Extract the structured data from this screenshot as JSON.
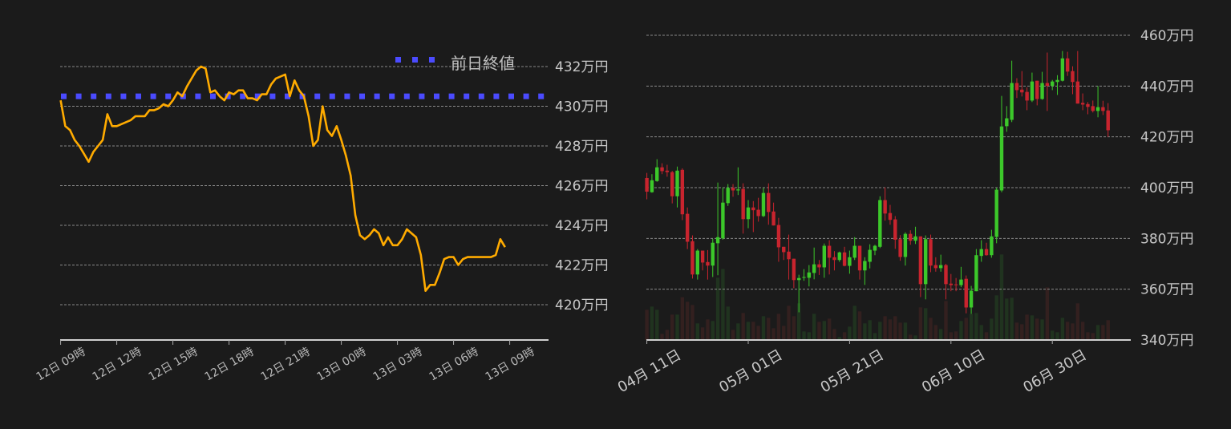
{
  "chart_data": [
    {
      "type": "line",
      "title": "",
      "xlabel": "",
      "ylabel": "",
      "ylim": [
        418.3,
        433.3
      ],
      "y_ticks": [
        "420万円",
        "422万円",
        "424万円",
        "426万円",
        "428万円",
        "430万円",
        "432万円"
      ],
      "y_tick_values": [
        420,
        422,
        424,
        426,
        428,
        430,
        432
      ],
      "x_ticks": [
        "12日 09時",
        "12日 12時",
        "12日 15時",
        "12日 18時",
        "12日 21時",
        "13日 00時",
        "13日 03時",
        "13日 06時",
        "13日 09時"
      ],
      "grid": true,
      "legend_position": "top-right",
      "reference_line": {
        "name": "前日終値",
        "value": 430.5,
        "color": "#4b4bff",
        "style": "dotted"
      },
      "series": [
        {
          "color": "#ffab00",
          "x": [
            "12日 09:00",
            "12日 09:15",
            "12日 09:30",
            "12日 09:45",
            "12日 10:00",
            "12日 10:15",
            "12日 10:30",
            "12日 10:45",
            "12日 11:00",
            "12日 11:15",
            "12日 11:30",
            "12日 11:45",
            "12日 12:00",
            "12日 12:15",
            "12日 12:30",
            "12日 12:45",
            "12日 13:00",
            "12日 13:15",
            "12日 13:30",
            "12日 13:45",
            "12日 14:00",
            "12日 14:15",
            "12日 14:30",
            "12日 14:45",
            "12日 15:00",
            "12日 15:15",
            "12日 15:30",
            "12日 15:45",
            "12日 16:00",
            "12日 16:15",
            "12日 16:30",
            "12日 16:45",
            "12日 17:00",
            "12日 17:15",
            "12日 17:30",
            "12日 17:45",
            "12日 18:00",
            "12日 18:15",
            "12日 18:30",
            "12日 18:45",
            "12日 19:00",
            "12日 19:15",
            "12日 19:30",
            "12日 19:45",
            "12日 20:00",
            "12日 20:15",
            "12日 20:30",
            "12日 20:45",
            "12日 21:00",
            "12日 21:15",
            "12日 21:30",
            "12日 21:45",
            "12日 22:00",
            "12日 22:15",
            "12日 22:30",
            "12日 22:45",
            "12日 23:00",
            "12日 23:15",
            "12日 23:30",
            "12日 23:45",
            "13日 00:00",
            "13日 00:15",
            "13日 00:30",
            "13日 00:45",
            "13日 01:00",
            "13日 01:15",
            "13日 01:30",
            "13日 01:45",
            "13日 02:00",
            "13日 02:15",
            "13日 02:30",
            "13日 02:45",
            "13日 03:00",
            "13日 03:15",
            "13日 03:30",
            "13日 03:45",
            "13日 04:00",
            "13日 04:15",
            "13日 04:30",
            "13日 04:45",
            "13日 05:00",
            "13日 05:15",
            "13日 05:30",
            "13日 05:45",
            "13日 06:00",
            "13日 06:15",
            "13日 06:30",
            "13日 06:45",
            "13日 07:00",
            "13日 07:15",
            "13日 07:30",
            "13日 07:45",
            "13日 08:00",
            "13日 08:15",
            "13日 08:30",
            "13日 08:45"
          ],
          "y": [
            430.3,
            429.0,
            428.8,
            428.3,
            428.0,
            427.6,
            427.2,
            427.7,
            428.0,
            428.3,
            429.6,
            429.0,
            429.0,
            429.1,
            429.2,
            429.3,
            429.5,
            429.5,
            429.5,
            429.8,
            429.8,
            429.9,
            430.1,
            430.0,
            430.3,
            430.7,
            430.5,
            431.0,
            431.4,
            431.8,
            432.0,
            431.9,
            430.7,
            430.8,
            430.5,
            430.3,
            430.7,
            430.6,
            430.8,
            430.8,
            430.4,
            430.4,
            430.3,
            430.6,
            430.6,
            431.1,
            431.4,
            431.5,
            431.6,
            430.5,
            431.3,
            430.8,
            430.5,
            429.5,
            428.0,
            428.3,
            430.0,
            428.8,
            428.5,
            429.0,
            428.3,
            427.5,
            426.5,
            424.5,
            423.5,
            423.3,
            423.5,
            423.8,
            423.6,
            423.0,
            423.4,
            423.0,
            423.0,
            423.3,
            423.8,
            423.6,
            423.4,
            422.5,
            420.7,
            421.0,
            421.0,
            421.6,
            422.3,
            422.4,
            422.4,
            422.0,
            422.3,
            422.4,
            422.4,
            422.4,
            422.4,
            422.4,
            422.4,
            422.5,
            423.3,
            422.9
          ]
        }
      ]
    },
    {
      "type": "candlestick",
      "title": "",
      "xlabel": "",
      "ylabel": "",
      "ylim": [
        340,
        460
      ],
      "y_ticks": [
        "340万円",
        "360万円",
        "380万円",
        "400万円",
        "420万円",
        "440万円",
        "460万円"
      ],
      "y_tick_values": [
        340,
        360,
        380,
        400,
        420,
        440,
        460
      ],
      "x_ticks": [
        "04月 11日",
        "05月 01日",
        "05月 21日",
        "06月 10日",
        "06月 30日"
      ],
      "x_tick_dates": [
        "04-11",
        "05-01",
        "05-21",
        "06-10",
        "06-30"
      ],
      "grid": true,
      "up_color": "#3cc82a",
      "down_color": "#c8242e",
      "volume_up_color": "#20331f",
      "volume_down_color": "#33201f",
      "ohlcv_fields": [
        "date",
        "open",
        "high",
        "low",
        "close",
        "volume"
      ],
      "candles": [
        [
          "04-11",
          403.8,
          405.8,
          395.4,
          398.4,
          113
        ],
        [
          "04-12",
          398.2,
          405.3,
          398.0,
          402.9,
          125
        ],
        [
          "04-13",
          402.6,
          411.2,
          402.3,
          408.0,
          113
        ],
        [
          "04-14",
          408.0,
          409.6,
          405.3,
          406.5,
          23
        ],
        [
          "04-15",
          406.7,
          409.0,
          404.3,
          406.1,
          38
        ],
        [
          "04-16",
          406.1,
          406.6,
          393.8,
          396.6,
          95
        ],
        [
          "04-17",
          396.6,
          408.3,
          392.2,
          406.7,
          95
        ],
        [
          "04-18",
          407.0,
          407.6,
          387.2,
          389.5,
          160
        ],
        [
          "04-19",
          389.7,
          392.2,
          375.8,
          378.7,
          143
        ],
        [
          "04-20",
          378.9,
          381.2,
          364.2,
          365.8,
          131
        ],
        [
          "04-21",
          365.8,
          375.8,
          363.8,
          375.2,
          62
        ],
        [
          "04-22",
          375.2,
          375.2,
          367.4,
          370.5,
          47
        ],
        [
          "04-23",
          370.7,
          375.4,
          363.8,
          369.3,
          77
        ],
        [
          "04-24",
          369.3,
          379.8,
          364.8,
          378.3,
          71
        ],
        [
          "04-25",
          378.1,
          402.0,
          365.5,
          380.5,
          233
        ],
        [
          "04-26",
          380.0,
          400.1,
          379.5,
          394.1,
          266
        ],
        [
          "04-27",
          393.9,
          401.4,
          392.8,
          399.9,
          125
        ],
        [
          "04-28",
          399.9,
          401.4,
          396.4,
          398.9,
          38
        ],
        [
          "04-29",
          398.9,
          408.0,
          397.1,
          399.3,
          62
        ],
        [
          "04-30",
          399.5,
          401.7,
          381.9,
          387.6,
          101
        ],
        [
          "05-01",
          387.6,
          395.1,
          384.0,
          392.2,
          68
        ],
        [
          "05-02",
          392.2,
          394.7,
          382.5,
          391.1,
          68
        ],
        [
          "05-03",
          391.3,
          396.0,
          386.6,
          388.8,
          53
        ],
        [
          "05-04",
          388.8,
          399.9,
          388.4,
          397.9,
          89
        ],
        [
          "05-05",
          397.9,
          401.7,
          385.4,
          390.4,
          83
        ],
        [
          "05-06",
          390.6,
          394.1,
          385.1,
          385.1,
          44
        ],
        [
          "05-07",
          385.3,
          388.1,
          370.8,
          376.5,
          98
        ],
        [
          "05-08",
          376.7,
          376.7,
          371.5,
          374.6,
          53
        ],
        [
          "05-09",
          374.8,
          381.5,
          363.8,
          371.8,
          128
        ],
        [
          "05-10",
          372.0,
          372.0,
          360.4,
          363.6,
          89
        ],
        [
          "05-11",
          363.6,
          365.7,
          350.9,
          364.4,
          137
        ],
        [
          "05-12",
          364.5,
          367.9,
          363.3,
          364.8,
          32
        ],
        [
          "05-13",
          364.5,
          369.5,
          361.1,
          366.6,
          29
        ],
        [
          "05-14",
          366.4,
          376.4,
          363.9,
          369.8,
          98
        ],
        [
          "05-15",
          369.8,
          371.5,
          365.6,
          368.6,
          68
        ],
        [
          "05-16",
          368.6,
          378.0,
          364.5,
          377.1,
          71
        ],
        [
          "05-17",
          377.1,
          379.3,
          365.8,
          372.4,
          80
        ],
        [
          "05-18",
          372.6,
          375.0,
          367.4,
          371.5,
          41
        ],
        [
          "05-19",
          371.5,
          374.8,
          370.8,
          374.5,
          11
        ],
        [
          "05-20",
          374.5,
          376.7,
          369.0,
          369.2,
          29
        ],
        [
          "05-21",
          369.2,
          375.2,
          366.1,
          372.6,
          50
        ],
        [
          "05-22",
          372.4,
          380.5,
          371.5,
          377.1,
          128
        ],
        [
          "05-23",
          377.1,
          377.1,
          363.8,
          367.4,
          107
        ],
        [
          "05-24",
          367.4,
          372.6,
          361.7,
          371.1,
          62
        ],
        [
          "05-25",
          370.8,
          377.7,
          368.2,
          375.5,
          74
        ],
        [
          "05-26",
          375.2,
          377.5,
          373.4,
          377.1,
          26
        ],
        [
          "05-27",
          376.7,
          396.6,
          376.2,
          395.1,
          68
        ],
        [
          "05-28",
          395.1,
          400.1,
          387.0,
          389.8,
          89
        ],
        [
          "05-29",
          390.0,
          393.2,
          385.4,
          387.3,
          77
        ],
        [
          "05-30",
          387.5,
          388.8,
          375.9,
          379.5,
          89
        ],
        [
          "05-31",
          379.7,
          381.3,
          371.2,
          372.7,
          65
        ],
        [
          "06-01",
          372.7,
          382.4,
          369.3,
          381.8,
          65
        ],
        [
          "06-02",
          381.8,
          383.2,
          377.5,
          379.1,
          20
        ],
        [
          "06-03",
          379.1,
          384.6,
          377.8,
          380.8,
          17
        ],
        [
          "06-04",
          380.8,
          380.8,
          356.9,
          362.0,
          122
        ],
        [
          "06-05",
          362.0,
          381.2,
          356.0,
          379.7,
          119
        ],
        [
          "06-06",
          379.7,
          381.5,
          366.7,
          369.3,
          83
        ],
        [
          "06-07",
          369.5,
          372.6,
          366.9,
          368.3,
          56
        ],
        [
          "06-08",
          368.3,
          373.6,
          366.9,
          369.5,
          41
        ],
        [
          "06-09",
          369.5,
          370.0,
          356.0,
          362.0,
          146
        ],
        [
          "06-10",
          362.2,
          366.0,
          359.2,
          361.6,
          29
        ],
        [
          "06-11",
          361.9,
          364.4,
          359.2,
          361.7,
          32
        ],
        [
          "06-12",
          361.6,
          368.8,
          360.8,
          363.8,
          71
        ],
        [
          "06-13",
          364.1,
          365.4,
          350.5,
          352.8,
          83
        ],
        [
          "06-14",
          352.8,
          361.3,
          350.3,
          359.4,
          98
        ],
        [
          "06-15",
          359.2,
          375.8,
          359.2,
          373.4,
          101
        ],
        [
          "06-16",
          373.1,
          379.3,
          370.8,
          375.8,
          56
        ],
        [
          "06-17",
          375.8,
          378.3,
          373.2,
          373.4,
          29
        ],
        [
          "06-18",
          373.4,
          383.4,
          372.4,
          380.8,
          80
        ],
        [
          "06-19",
          380.6,
          400.0,
          378.1,
          399.2,
          167
        ],
        [
          "06-20",
          398.9,
          436.1,
          398.2,
          424.1,
          320
        ],
        [
          "06-21",
          424.2,
          432.1,
          422.0,
          427.3,
          155
        ],
        [
          "06-22",
          426.7,
          450.0,
          425.8,
          441.2,
          158
        ],
        [
          "06-23",
          441.2,
          443.1,
          435.3,
          438.4,
          65
        ],
        [
          "06-24",
          438.6,
          445.9,
          435.9,
          437.5,
          59
        ],
        [
          "06-25",
          437.7,
          439.5,
          430.5,
          434.3,
          95
        ],
        [
          "06-26",
          434.3,
          445.3,
          433.7,
          441.8,
          92
        ],
        [
          "06-27",
          442.1,
          442.1,
          432.4,
          434.9,
          80
        ],
        [
          "06-28",
          434.9,
          445.6,
          434.6,
          441.2,
          77
        ],
        [
          "06-29",
          441.2,
          453.2,
          430.2,
          440.1,
          197
        ],
        [
          "06-30",
          440.1,
          442.4,
          438.4,
          441.8,
          35
        ],
        [
          "07-01",
          441.6,
          444.3,
          436.5,
          442.4,
          29
        ],
        [
          "07-02",
          442.1,
          453.8,
          441.8,
          450.9,
          83
        ],
        [
          "07-03",
          450.9,
          453.5,
          444.0,
          445.7,
          68
        ],
        [
          "07-04",
          445.9,
          447.8,
          436.8,
          441.6,
          62
        ],
        [
          "07-05",
          441.8,
          453.8,
          433.1,
          433.1,
          137
        ],
        [
          "07-06",
          433.4,
          437.1,
          430.5,
          432.7,
          68
        ],
        [
          "07-07",
          432.9,
          433.7,
          428.9,
          431.8,
          29
        ],
        [
          "07-08",
          432.1,
          434.3,
          429.6,
          430.2,
          26
        ],
        [
          "07-09",
          430.2,
          440.0,
          427.7,
          431.7,
          56
        ],
        [
          "07-10",
          431.7,
          434.2,
          428.6,
          430.2,
          56
        ],
        [
          "07-11",
          430.4,
          433.3,
          420.0,
          422.6,
          74
        ]
      ]
    }
  ]
}
